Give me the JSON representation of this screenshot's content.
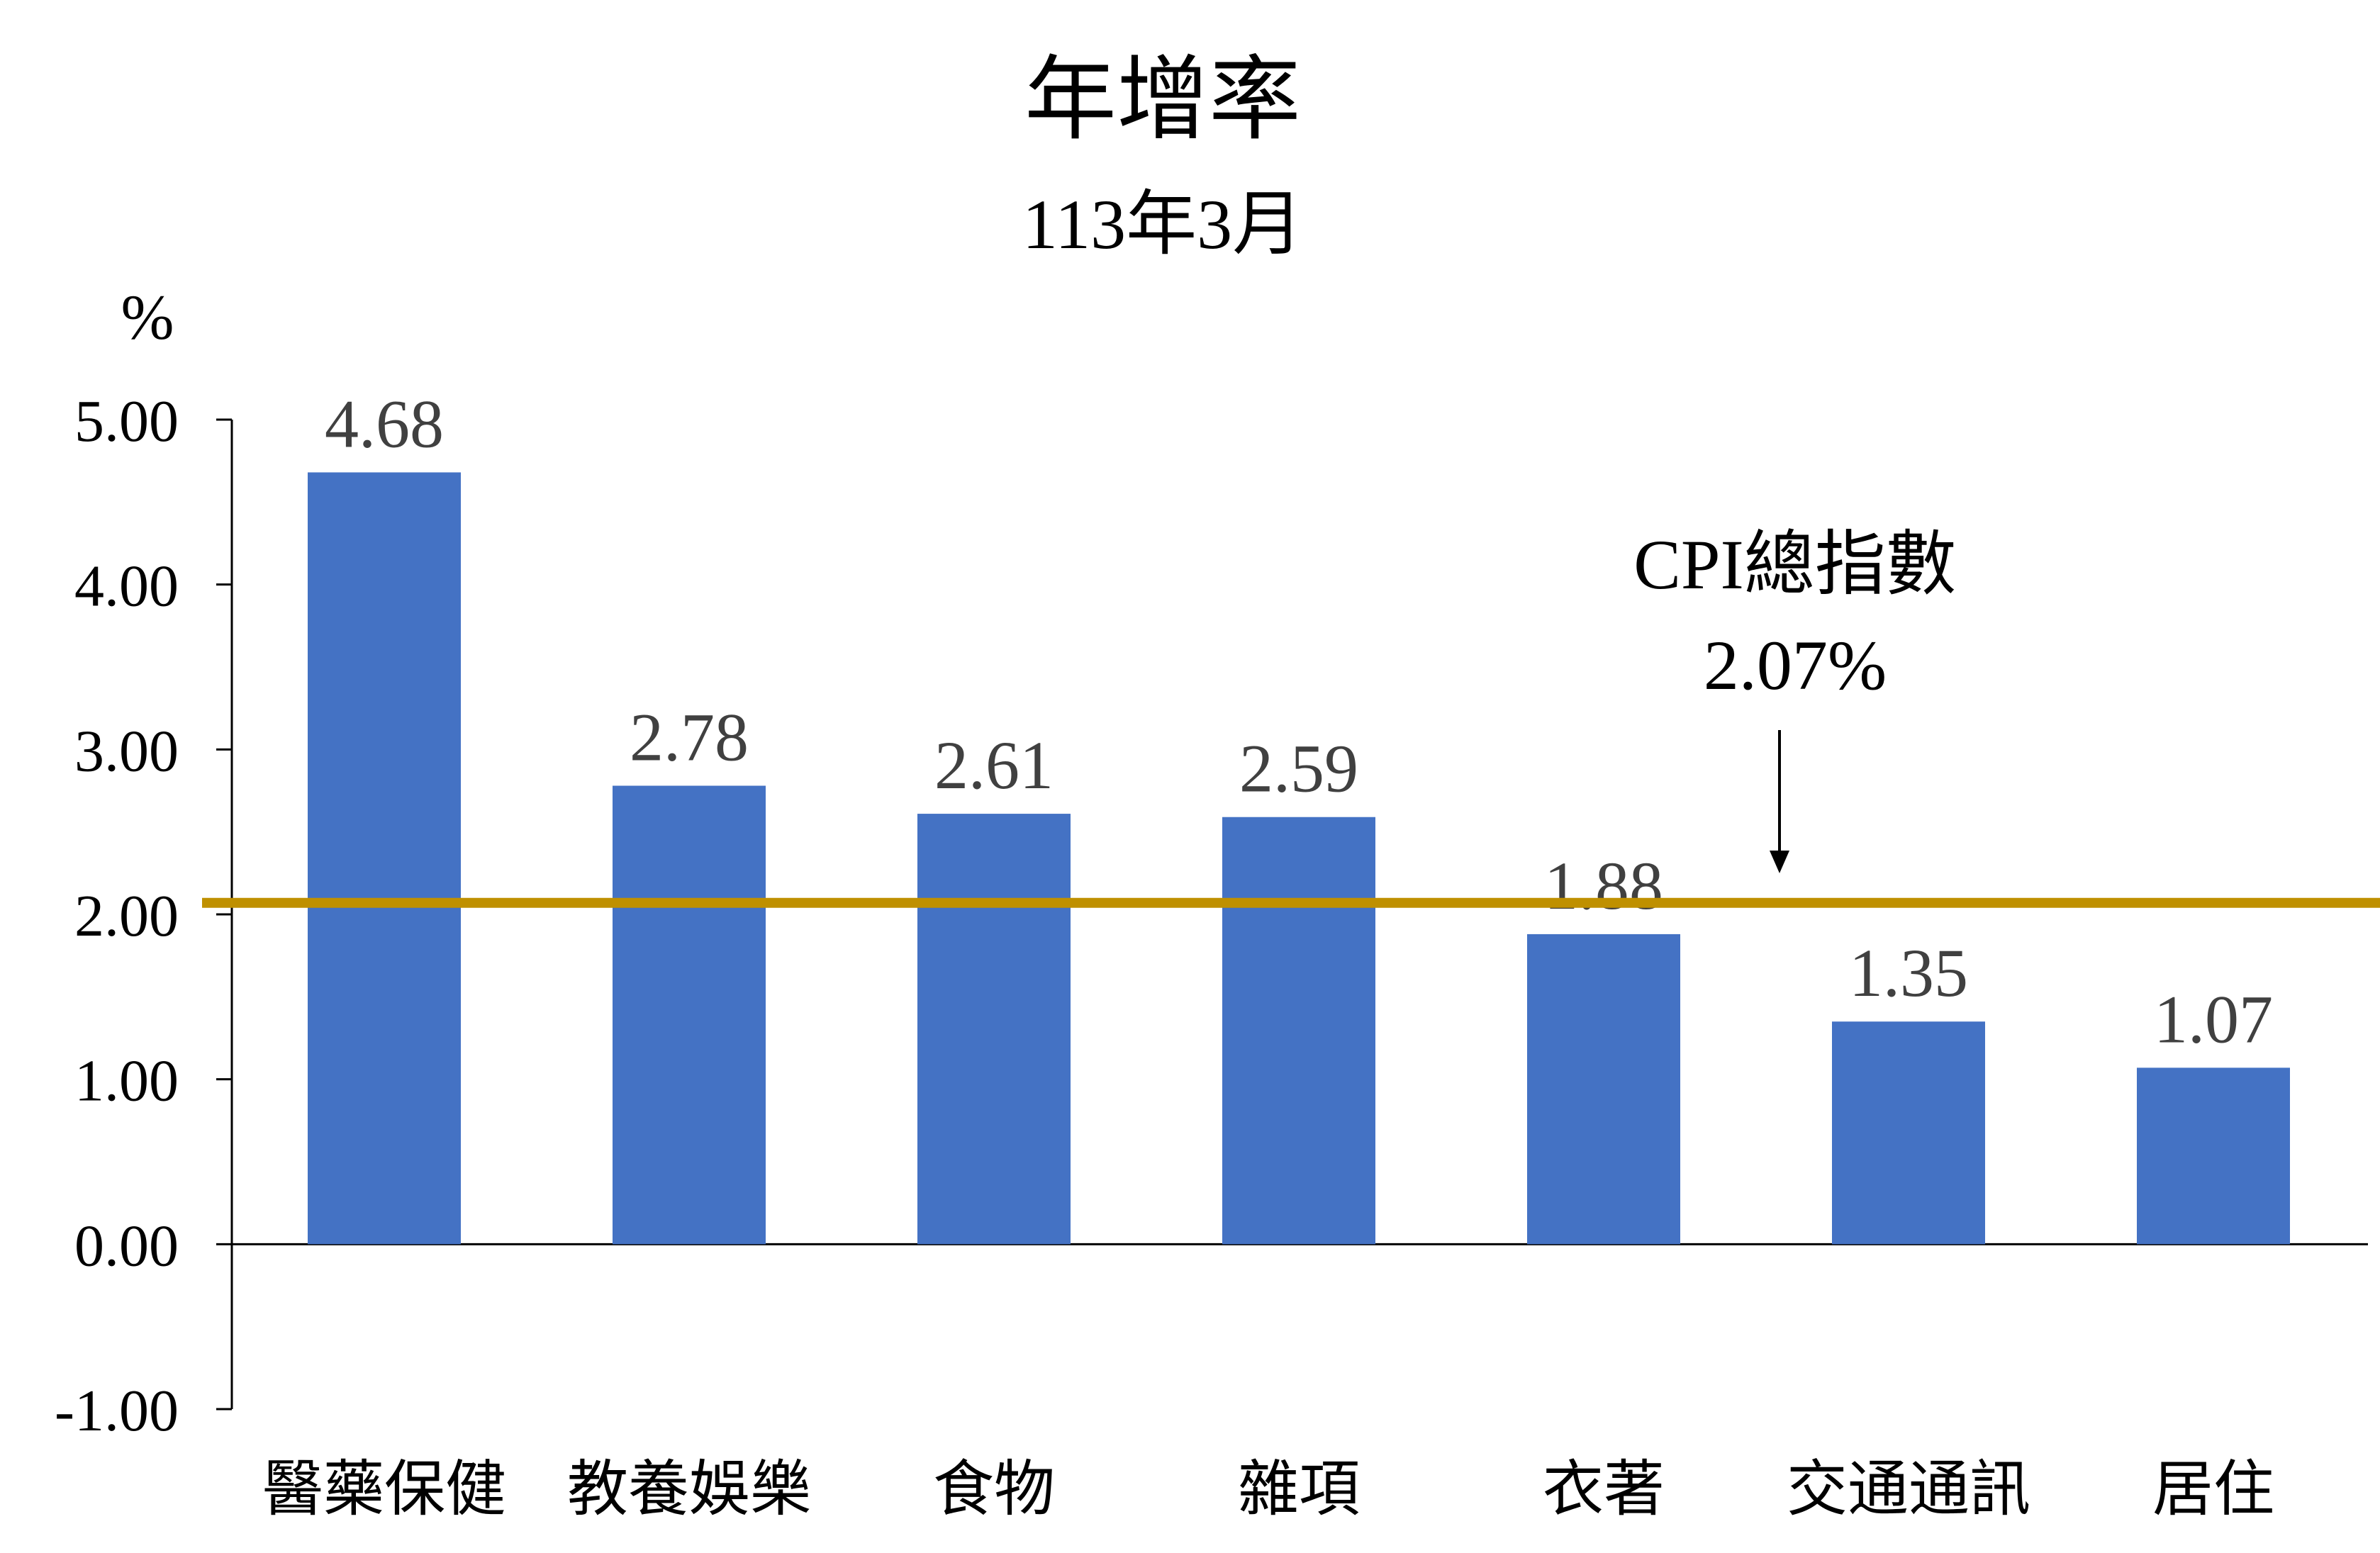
{
  "chart_data": {
    "type": "bar",
    "title": "年增率",
    "subtitle": "113年3月",
    "ylabel": "%",
    "ylim": [
      -1,
      5
    ],
    "yticks": [
      "5.00",
      "4.00",
      "3.00",
      "2.00",
      "1.00",
      "0.00",
      "-1.00"
    ],
    "categories": [
      "醫藥保健",
      "教養娛樂",
      "食物",
      "雜項",
      "衣著",
      "交通通訊",
      "居住"
    ],
    "values": [
      4.68,
      2.78,
      2.61,
      2.59,
      1.88,
      1.35,
      1.07
    ],
    "data_labels": [
      "4.68",
      "2.78",
      "2.61",
      "2.59",
      "1.88",
      "1.35",
      "1.07"
    ],
    "reference_line": {
      "value": 2.07,
      "label_line1": "CPI總指數",
      "label_line2": "2.07%",
      "color": "#bf9000"
    },
    "bar_color": "#4472c4",
    "grid": false,
    "legend": "none"
  }
}
